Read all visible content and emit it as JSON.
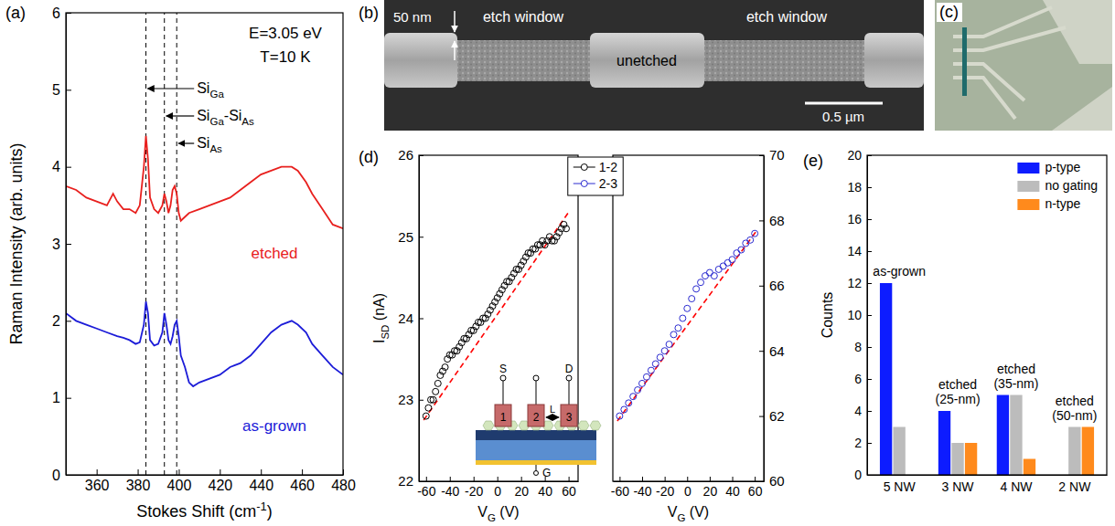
{
  "chart_data": [
    {
      "panel": "(a)",
      "type": "line",
      "x_label": [
        {
          "text": "Stokes Shift (cm"
        },
        {
          "sup": "-1"
        },
        {
          "text": ")"
        }
      ],
      "y_label": "Raman Intensity (arb. units)",
      "xlim": [
        345,
        480
      ],
      "xticks": [
        360,
        380,
        400,
        420,
        440,
        460,
        480
      ],
      "ylim": [
        0,
        6
      ],
      "yticks": [
        0,
        1,
        2,
        3,
        4,
        5,
        6
      ],
      "annotations": [
        "E=3.05 eV",
        "T=10 K"
      ],
      "peaks": [
        {
          "x": 384,
          "label": [
            {
              "text": "Si"
            },
            {
              "sub": "Ga"
            }
          ]
        },
        {
          "x": 393,
          "label": [
            {
              "text": "Si"
            },
            {
              "sub": "Ga"
            },
            {
              "text": "-Si"
            },
            {
              "sub": "As"
            }
          ]
        },
        {
          "x": 399,
          "label": [
            {
              "text": "Si"
            },
            {
              "sub": "As"
            }
          ]
        }
      ],
      "series": [
        {
          "name": "etched",
          "color": "#e8201e",
          "x": [
            345,
            350,
            355,
            360,
            365,
            368,
            370,
            373,
            376,
            379,
            381,
            383,
            384,
            385,
            386,
            388,
            390,
            392,
            393,
            394,
            395,
            396,
            397,
            398,
            399,
            400,
            401,
            403,
            405,
            410,
            415,
            420,
            425,
            430,
            435,
            440,
            445,
            450,
            455,
            458,
            462,
            465,
            470,
            475,
            480
          ],
          "values": [
            3.75,
            3.7,
            3.6,
            3.55,
            3.5,
            3.65,
            3.55,
            3.45,
            3.45,
            3.4,
            3.5,
            4.0,
            4.4,
            4.1,
            3.6,
            3.45,
            3.4,
            3.5,
            3.65,
            3.55,
            3.4,
            3.5,
            3.7,
            3.75,
            3.65,
            3.4,
            3.3,
            3.35,
            3.4,
            3.45,
            3.5,
            3.55,
            3.6,
            3.7,
            3.8,
            3.9,
            3.95,
            4.0,
            4.0,
            3.95,
            3.8,
            3.65,
            3.45,
            3.25,
            3.2
          ]
        },
        {
          "name": "as-grown",
          "color": "#1c1cd8",
          "x": [
            345,
            350,
            355,
            360,
            365,
            370,
            373,
            376,
            379,
            381,
            383,
            384,
            385,
            386,
            388,
            390,
            392,
            393,
            394,
            395,
            396,
            397,
            398,
            399,
            400,
            401,
            403,
            405,
            407,
            410,
            415,
            420,
            425,
            430,
            435,
            440,
            445,
            450,
            455,
            458,
            462,
            465,
            470,
            475,
            480
          ],
          "values": [
            2.1,
            2.0,
            1.95,
            1.9,
            1.85,
            1.8,
            1.78,
            1.75,
            1.7,
            1.72,
            1.95,
            2.25,
            2.1,
            1.75,
            1.68,
            1.7,
            1.85,
            2.1,
            1.95,
            1.75,
            1.7,
            1.8,
            1.95,
            2.0,
            1.8,
            1.55,
            1.4,
            1.2,
            1.15,
            1.2,
            1.25,
            1.3,
            1.4,
            1.45,
            1.55,
            1.7,
            1.85,
            1.95,
            2.0,
            1.95,
            1.85,
            1.7,
            1.55,
            1.4,
            1.3
          ]
        }
      ]
    },
    {
      "panel": "(b)",
      "type": "image",
      "annotations": [
        "50 nm",
        "etch window",
        "unetched",
        "etch window",
        "0.5 µm"
      ]
    },
    {
      "panel": "(c)",
      "type": "image"
    },
    {
      "panel": "(d)",
      "type": "scatter",
      "legend": "top",
      "inset": {
        "labels": [
          "S",
          "D",
          "G",
          "L"
        ],
        "contacts": [
          "1",
          "2",
          "3"
        ]
      },
      "subplots": [
        {
          "x_label": [
            {
              "text": "V"
            },
            {
              "sub": "G"
            },
            {
              "text": " (V)"
            }
          ],
          "y_label": [
            {
              "text": "I"
            },
            {
              "sub": "SD"
            },
            {
              "text": " (nA)"
            }
          ],
          "xlim": [
            -66,
            68
          ],
          "xticks": [
            -60,
            -40,
            -20,
            0,
            20,
            40,
            60
          ],
          "ylim": [
            22,
            26
          ],
          "yticks": [
            22,
            23,
            24,
            25,
            26
          ],
          "series": [
            {
              "name": "1-2",
              "color": "#000000",
              "marker": "circle",
              "x": [
                -60,
                -58,
                -56,
                -54,
                -52,
                -50,
                -48,
                -46,
                -44,
                -42,
                -40,
                -38,
                -36,
                -34,
                -32,
                -30,
                -28,
                -26,
                -24,
                -22,
                -20,
                -18,
                -16,
                -14,
                -12,
                -10,
                -8,
                -6,
                -4,
                -2,
                0,
                2,
                4,
                6,
                8,
                10,
                12,
                14,
                16,
                18,
                20,
                22,
                24,
                26,
                28,
                30,
                32,
                34,
                36,
                38,
                40,
                42,
                44,
                46,
                48,
                50,
                52,
                54,
                56,
                58
              ],
              "values": [
                22.8,
                22.9,
                23.0,
                23.0,
                23.1,
                23.2,
                23.3,
                23.35,
                23.4,
                23.5,
                23.55,
                23.55,
                23.6,
                23.6,
                23.65,
                23.7,
                23.75,
                23.75,
                23.8,
                23.85,
                23.85,
                23.9,
                23.95,
                23.95,
                24.0,
                24.0,
                24.05,
                24.1,
                24.15,
                24.2,
                24.25,
                24.3,
                24.35,
                24.4,
                24.45,
                24.45,
                24.5,
                24.55,
                24.6,
                24.6,
                24.65,
                24.7,
                24.75,
                24.8,
                24.8,
                24.85,
                24.85,
                24.9,
                24.9,
                24.95,
                24.9,
                24.95,
                25.0,
                24.95,
                24.95,
                25.0,
                25.05,
                25.1,
                25.15,
                25.1
              ],
              "fit": {
                "color": "#ff0000",
                "line_style": "dashed",
                "x": [
                  -62,
                  60
                ],
                "values": [
                  22.75,
                  25.3
                ]
              }
            }
          ]
        },
        {
          "x_label": [
            {
              "text": "V"
            },
            {
              "sub": "G"
            },
            {
              "text": " (V)"
            }
          ],
          "xlim": [
            -66,
            68
          ],
          "xticks": [
            -60,
            -40,
            -20,
            0,
            20,
            40,
            60
          ],
          "ylim": [
            60,
            70
          ],
          "yticks": [
            60,
            62,
            64,
            66,
            68,
            70
          ],
          "series": [
            {
              "name": "2-3",
              "color": "#2b2bd0",
              "marker": "circle",
              "x": [
                -60,
                -56,
                -52,
                -48,
                -44,
                -40,
                -36,
                -32,
                -28,
                -24,
                -20,
                -16,
                -12,
                -8,
                -4,
                0,
                4,
                8,
                12,
                16,
                20,
                24,
                28,
                32,
                36,
                40,
                44,
                48,
                52,
                56,
                60
              ],
              "values": [
                62.0,
                62.2,
                62.4,
                62.6,
                62.8,
                63.0,
                63.2,
                63.4,
                63.6,
                63.8,
                64.0,
                64.2,
                64.5,
                64.7,
                65.0,
                65.3,
                65.6,
                65.9,
                66.1,
                66.3,
                66.4,
                66.3,
                66.5,
                66.6,
                66.7,
                66.8,
                67.0,
                67.1,
                67.3,
                67.4,
                67.6
              ],
              "fit": {
                "color": "#ff0000",
                "line_style": "dashed",
                "x": [
                  -62,
                  62
                ],
                "values": [
                  61.85,
                  67.7
                ]
              }
            }
          ]
        }
      ]
    },
    {
      "panel": "(e)",
      "type": "bar",
      "y_label": "Counts",
      "categories": [
        "5 NW",
        "3 NW",
        "4 NW",
        "2 NW"
      ],
      "annotations": [
        "as-grown",
        "etched (25-nm)",
        "etched (35-nm)",
        "etched (50-nm)"
      ],
      "ylim": [
        0,
        20
      ],
      "yticks": [
        0,
        2,
        4,
        6,
        8,
        10,
        12,
        14,
        16,
        18,
        20
      ],
      "legend": "top-right",
      "series": [
        {
          "name": "p-type",
          "color": "#0d1cff",
          "values": [
            12,
            4,
            5,
            0
          ]
        },
        {
          "name": "no gating",
          "color": "#bcbcbc",
          "values": [
            3,
            2,
            5,
            3
          ]
        },
        {
          "name": "n-type",
          "color": "#ff8a1c",
          "values": [
            0,
            2,
            1,
            3
          ]
        }
      ]
    }
  ]
}
